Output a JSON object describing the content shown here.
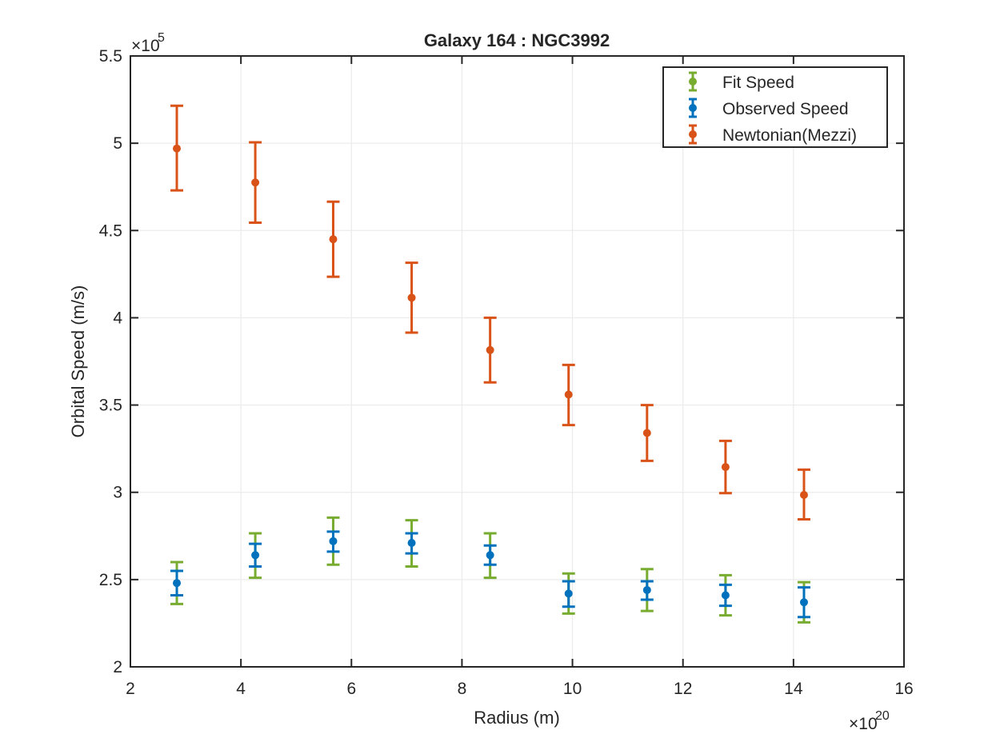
{
  "chart_data": {
    "type": "scatter",
    "title": "Galaxy 164 : NGC3992",
    "xlabel": "Radius (m)",
    "ylabel": "Orbital Speed (m/s)",
    "x_multiplier_base": "×10",
    "x_multiplier_exp": "20",
    "y_multiplier_base": "×10",
    "y_multiplier_exp": "5",
    "xlim": [
      2,
      16
    ],
    "ylim": [
      2,
      5.5
    ],
    "x_ticks": [
      2,
      4,
      6,
      8,
      10,
      12,
      14,
      16
    ],
    "y_ticks": [
      2,
      2.5,
      3,
      3.5,
      4,
      4.5,
      5,
      5.5
    ],
    "x_tick_labels": [
      "2",
      "4",
      "6",
      "8",
      "10",
      "12",
      "14",
      "16"
    ],
    "y_tick_labels": [
      "2",
      "2.5",
      "3",
      "3.5",
      "4",
      "4.5",
      "5",
      "5.5"
    ],
    "grid": true,
    "legend_position": "top-right",
    "x": [
      2.84,
      4.26,
      5.67,
      7.09,
      8.51,
      9.93,
      11.35,
      12.77,
      14.19
    ],
    "series": [
      {
        "name": "Fit Speed",
        "color": "#77AC30",
        "marker": false,
        "values": [
          2.48,
          2.64,
          2.72,
          2.71,
          2.64,
          2.42,
          2.44,
          2.41,
          2.37
        ],
        "lower": [
          2.36,
          2.51,
          2.585,
          2.575,
          2.51,
          2.305,
          2.32,
          2.295,
          2.255
        ],
        "upper": [
          2.6,
          2.765,
          2.855,
          2.84,
          2.765,
          2.535,
          2.56,
          2.525,
          2.485
        ]
      },
      {
        "name": "Observed Speed",
        "color": "#0072BD",
        "marker": true,
        "values": [
          2.48,
          2.64,
          2.72,
          2.71,
          2.64,
          2.42,
          2.44,
          2.41,
          2.37
        ],
        "lower": [
          2.41,
          2.575,
          2.66,
          2.65,
          2.585,
          2.345,
          2.385,
          2.35,
          2.285
        ],
        "upper": [
          2.55,
          2.705,
          2.775,
          2.765,
          2.695,
          2.49,
          2.49,
          2.47,
          2.455
        ]
      },
      {
        "name": "Newtonian(Mezzi)",
        "color": "#D95319",
        "marker": true,
        "values": [
          4.97,
          4.775,
          4.45,
          4.115,
          3.815,
          3.56,
          3.34,
          3.145,
          2.985
        ],
        "lower": [
          4.73,
          4.545,
          4.235,
          3.915,
          3.63,
          3.385,
          3.18,
          2.995,
          2.845
        ],
        "upper": [
          5.215,
          5.005,
          4.665,
          4.315,
          4.0,
          3.73,
          3.5,
          3.295,
          3.13
        ]
      }
    ]
  }
}
